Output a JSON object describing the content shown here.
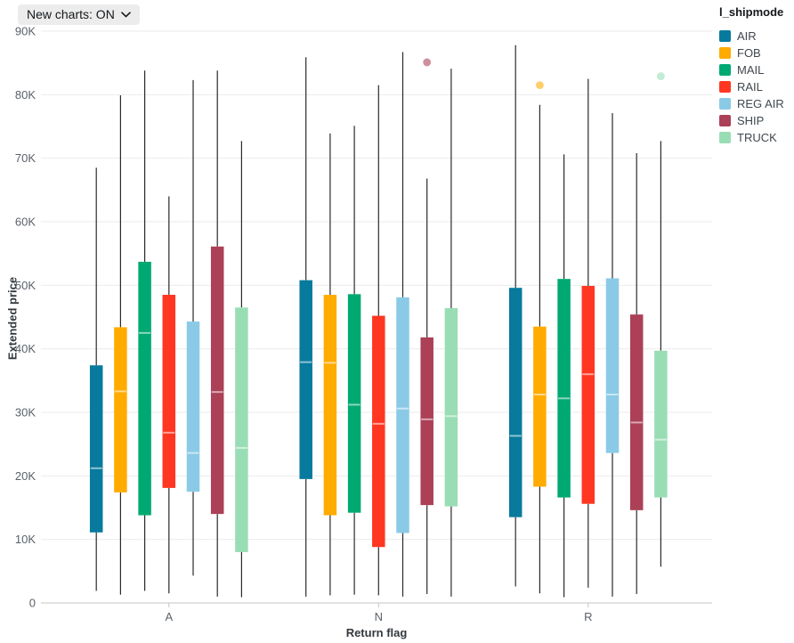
{
  "controls": {
    "new_charts_button": "New charts: ON"
  },
  "colors": {
    "grid": "#EBEBEB",
    "axis_line": "#C6C6C6",
    "tick_label": "#5A6169",
    "whisker": "#2A2A2A",
    "median_line": "rgba(255,255,255,0.55)",
    "pill_bg": "#ECECEC",
    "pill_text": "#14181B"
  },
  "chart_data": {
    "type": "box",
    "title": "",
    "xlabel": "Return flag",
    "ylabel": "Extended price",
    "legend_title": "l_shipmode",
    "legend_position": "top-right",
    "grid": "horizontal-only",
    "categories": [
      "A",
      "N",
      "R"
    ],
    "ylim": [
      0,
      90000
    ],
    "yticks": {
      "values": [
        0,
        10000,
        20000,
        30000,
        40000,
        50000,
        60000,
        70000,
        80000,
        90000
      ],
      "labels": [
        "0",
        "10K",
        "20K",
        "30K",
        "40K",
        "50K",
        "60K",
        "70K",
        "80K",
        "90K"
      ]
    },
    "series": [
      {
        "name": "AIR",
        "color": "#077A9D",
        "boxes": [
          {
            "category": "A",
            "low": 1900,
            "q1": 11100,
            "median": 21200,
            "q3": 37400,
            "high": 68500,
            "outliers": []
          },
          {
            "category": "N",
            "low": 1000,
            "q1": 19500,
            "median": 37900,
            "q3": 50800,
            "high": 85900,
            "outliers": []
          },
          {
            "category": "R",
            "low": 2600,
            "q1": 13500,
            "median": 26300,
            "q3": 49600,
            "high": 87800,
            "outliers": []
          }
        ]
      },
      {
        "name": "FOB",
        "color": "#FFAB00",
        "boxes": [
          {
            "category": "A",
            "low": 1300,
            "q1": 17400,
            "median": 33300,
            "q3": 43400,
            "high": 79900,
            "outliers": []
          },
          {
            "category": "N",
            "low": 1200,
            "q1": 13800,
            "median": 37800,
            "q3": 48500,
            "high": 73900,
            "outliers": []
          },
          {
            "category": "R",
            "low": 1500,
            "q1": 18300,
            "median": 32800,
            "q3": 43500,
            "high": 78400,
            "outliers": [
              81500
            ]
          }
        ]
      },
      {
        "name": "MAIL",
        "color": "#00A972",
        "boxes": [
          {
            "category": "A",
            "low": 1900,
            "q1": 13800,
            "median": 42500,
            "q3": 53700,
            "high": 83800,
            "outliers": []
          },
          {
            "category": "N",
            "low": 1300,
            "q1": 14200,
            "median": 31200,
            "q3": 48600,
            "high": 75100,
            "outliers": []
          },
          {
            "category": "R",
            "low": 900,
            "q1": 16600,
            "median": 32200,
            "q3": 51000,
            "high": 70600,
            "outliers": []
          }
        ]
      },
      {
        "name": "RAIL",
        "color": "#FF3621",
        "boxes": [
          {
            "category": "A",
            "low": 1500,
            "q1": 18100,
            "median": 26800,
            "q3": 48500,
            "high": 64000,
            "outliers": []
          },
          {
            "category": "N",
            "low": 1200,
            "q1": 8800,
            "median": 28200,
            "q3": 45200,
            "high": 81500,
            "outliers": []
          },
          {
            "category": "R",
            "low": 2400,
            "q1": 15600,
            "median": 36000,
            "q3": 49900,
            "high": 82500,
            "outliers": []
          }
        ]
      },
      {
        "name": "REG AIR",
        "color": "#8BCAE7",
        "boxes": [
          {
            "category": "A",
            "low": 4300,
            "q1": 17500,
            "median": 23600,
            "q3": 44300,
            "high": 82300,
            "outliers": []
          },
          {
            "category": "N",
            "low": 1000,
            "q1": 11000,
            "median": 30600,
            "q3": 48100,
            "high": 86700,
            "outliers": []
          },
          {
            "category": "R",
            "low": 1000,
            "q1": 23600,
            "median": 32800,
            "q3": 51100,
            "high": 77100,
            "outliers": []
          }
        ]
      },
      {
        "name": "SHIP",
        "color": "#AB4057",
        "boxes": [
          {
            "category": "A",
            "low": 1000,
            "q1": 14000,
            "median": 33200,
            "q3": 56100,
            "high": 83800,
            "outliers": []
          },
          {
            "category": "N",
            "low": 1400,
            "q1": 15400,
            "median": 28900,
            "q3": 41800,
            "high": 66800,
            "outliers": [
              85100
            ]
          },
          {
            "category": "R",
            "low": 1400,
            "q1": 14600,
            "median": 28400,
            "q3": 45400,
            "high": 70800,
            "outliers": []
          }
        ]
      },
      {
        "name": "TRUCK",
        "color": "#99DDB4",
        "boxes": [
          {
            "category": "A",
            "low": 900,
            "q1": 8000,
            "median": 24400,
            "q3": 46500,
            "high": 72700,
            "outliers": []
          },
          {
            "category": "N",
            "low": 1000,
            "q1": 15200,
            "median": 29400,
            "q3": 46400,
            "high": 84100,
            "outliers": []
          },
          {
            "category": "R",
            "low": 5700,
            "q1": 16600,
            "median": 25700,
            "q3": 39700,
            "high": 72700,
            "outliers": [
              82900
            ]
          }
        ]
      }
    ]
  }
}
